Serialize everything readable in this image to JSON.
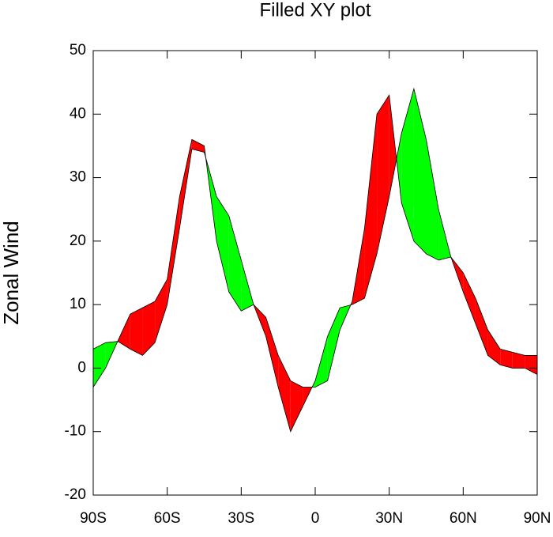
{
  "chart_data": {
    "type": "filled-xy",
    "title": "Filled XY plot",
    "y_label": "Zonal Wind",
    "x": [
      -90,
      -85,
      -80,
      -75,
      -70,
      -65,
      -60,
      -55,
      -50,
      -45,
      -40,
      -35,
      -30,
      -25,
      -20,
      -15,
      -10,
      -5,
      0,
      5,
      10,
      15,
      20,
      25,
      30,
      35,
      40,
      45,
      50,
      55,
      60,
      65,
      70,
      75,
      80,
      85,
      90
    ],
    "series": [
      {
        "color": "#000000",
        "values": [
          -3,
          0,
          4.3,
          8.5,
          9.5,
          10.5,
          14,
          27,
          36,
          35,
          20,
          12,
          9,
          10,
          8,
          2,
          -2,
          -3,
          -3,
          -2,
          6,
          10.5,
          22,
          40,
          43,
          26,
          20,
          18,
          17,
          17.5,
          15,
          11,
          6,
          3,
          2.5,
          2,
          2
        ]
      },
      {
        "color": "#000000",
        "values": [
          3,
          4,
          4.2,
          3,
          2,
          4,
          10,
          22,
          34.5,
          34,
          27,
          24,
          17,
          10,
          5,
          -3,
          -10,
          -6,
          -2,
          5,
          9.5,
          10,
          11,
          18,
          27,
          37,
          44,
          36,
          25,
          17.5,
          12,
          7,
          2,
          0.5,
          0,
          0,
          -1
        ]
      }
    ],
    "fill_colors": {
      "above": "#ff0000",
      "below": "#00ff00"
    },
    "xlim": [
      -90,
      90
    ],
    "xticks": [
      {
        "value": -90,
        "label": "90S"
      },
      {
        "value": -60,
        "label": "60S"
      },
      {
        "value": -30,
        "label": "30S"
      },
      0,
      {
        "value": 30,
        "label": "30N"
      },
      {
        "value": 60,
        "label": "60N"
      },
      {
        "value": 90,
        "label": "90N"
      }
    ],
    "ylim": [
      -20,
      50
    ],
    "yticks": [
      -20,
      -10,
      0,
      10,
      20,
      30,
      40,
      50
    ]
  }
}
